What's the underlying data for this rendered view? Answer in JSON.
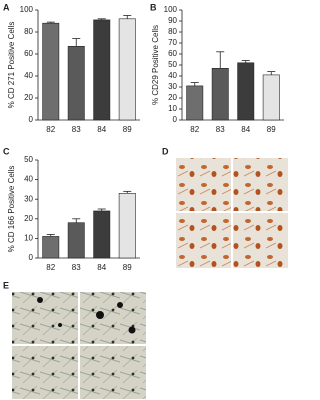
{
  "chart_data": [
    {
      "type": "bar",
      "panel": "A",
      "ylabel": "% CD 271 Positive Cells",
      "categories": [
        "82",
        "83",
        "84",
        "89"
      ],
      "values": [
        88,
        67,
        91,
        92
      ],
      "errors": [
        1,
        7,
        1,
        3
      ],
      "colors": [
        "#6e6e6e",
        "#5a5a5a",
        "#3c3c3c",
        "#e4e4e4"
      ],
      "ylim": [
        0,
        100
      ],
      "yticks": [
        0,
        20,
        40,
        60,
        80,
        100
      ]
    },
    {
      "type": "bar",
      "panel": "B",
      "ylabel": "% CD29 Positive Cells",
      "categories": [
        "82",
        "83",
        "84",
        "89"
      ],
      "values": [
        31,
        47,
        52,
        41
      ],
      "errors": [
        3,
        15,
        2,
        3
      ],
      "colors": [
        "#6e6e6e",
        "#5a5a5a",
        "#3c3c3c",
        "#e4e4e4"
      ],
      "ylim": [
        0,
        100
      ],
      "yticks": [
        0,
        10,
        20,
        30,
        40,
        50,
        60,
        70,
        80,
        90,
        100
      ]
    },
    {
      "type": "bar",
      "panel": "C",
      "ylabel": "% CD 166 Positive Cells",
      "categories": [
        "82",
        "83",
        "84",
        "89"
      ],
      "values": [
        11,
        18,
        24,
        33
      ],
      "errors": [
        1,
        2,
        1,
        1
      ],
      "colors": [
        "#6e6e6e",
        "#5a5a5a",
        "#3c3c3c",
        "#e4e4e4"
      ],
      "ylim": [
        0,
        50
      ],
      "yticks": [
        0,
        10,
        20,
        30,
        40,
        50
      ]
    }
  ],
  "images": [
    {
      "panel": "D"
    },
    {
      "panel": "E"
    }
  ]
}
